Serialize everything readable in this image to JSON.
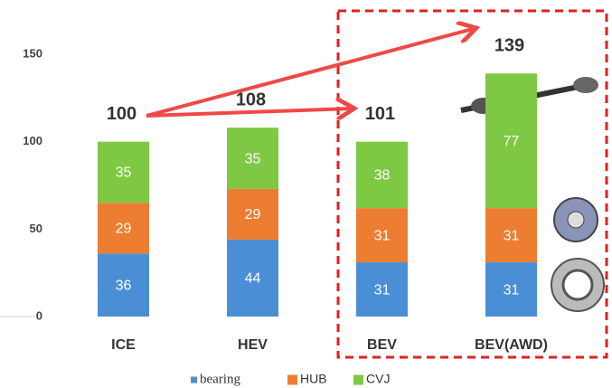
{
  "chart_data": {
    "type": "stacked-bar",
    "categories": [
      "ICE",
      "HEV",
      "BEV",
      "BEV(AWD)"
    ],
    "series": [
      {
        "name": "bearing",
        "color": "#4a8fd6",
        "values": [
          36,
          44,
          31,
          31
        ]
      },
      {
        "name": "HUB",
        "color": "#ed7d31",
        "values": [
          29,
          29,
          31,
          31
        ]
      },
      {
        "name": "CVJ",
        "color": "#7ec843",
        "values": [
          35,
          35,
          38,
          77
        ]
      }
    ],
    "totals": [
      100,
      108,
      101,
      139
    ],
    "ylim": [
      0,
      150
    ],
    "yticks": [
      0,
      50,
      100,
      150
    ],
    "grid": false
  }
}
